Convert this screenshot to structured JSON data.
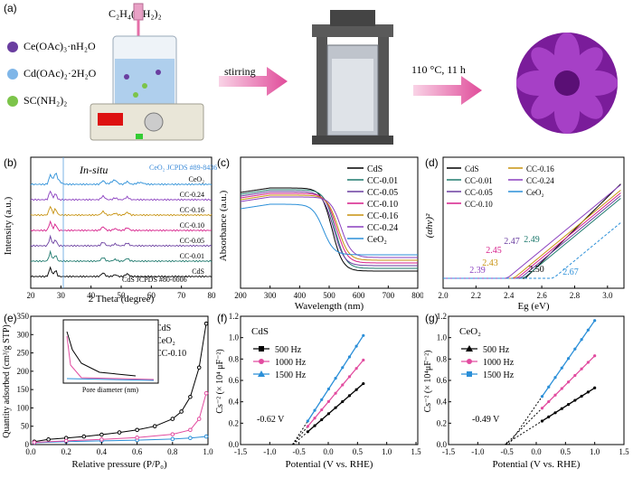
{
  "panel_a": {
    "label": "(a)",
    "reagents": [
      {
        "text": "Ce(OAc)₃·nH₂O",
        "color": "#6a3ea0"
      },
      {
        "text": "Cd(OAc)₂·2H₂O",
        "color": "#7fb6e8"
      },
      {
        "text": "SC(NH₂)₂",
        "color": "#7cc44a"
      }
    ],
    "syringe_reagent": "C₂H₄(NH₂)₂",
    "step1": "stirring",
    "step2": "110 °C,  11 h"
  },
  "chart_data": [
    {
      "panel": "(b)",
      "type": "line",
      "title": "In-situ",
      "xlabel": "2 Theta (degree)",
      "ylabel": "Intensity (a.u.)",
      "xlim": [
        20,
        80
      ],
      "xticks": [
        "20",
        "30",
        "40",
        "50",
        "60",
        "70",
        "80"
      ],
      "series": [
        {
          "name": "CdS"
        },
        {
          "name": "CC-0.01"
        },
        {
          "name": "CC-0.05"
        },
        {
          "name": "CC-0.10"
        },
        {
          "name": "CC-0.16"
        },
        {
          "name": "CC-0.24"
        },
        {
          "name": "CeO₂"
        }
      ],
      "annotations": [
        "CeO₂ JCPDS #89-8436",
        "CdS JCPDS #80-0006"
      ]
    },
    {
      "panel": "(c)",
      "type": "line",
      "xlabel": "Wavelength (nm)",
      "ylabel": "Absorbance (a.u.)",
      "xlim": [
        200,
        800
      ],
      "xticks": [
        "200",
        "300",
        "400",
        "500",
        "600",
        "700",
        "800"
      ],
      "series": [
        {
          "name": "CdS"
        },
        {
          "name": "CC-0.01"
        },
        {
          "name": "CC-0.05"
        },
        {
          "name": "CC-0.10"
        },
        {
          "name": "CC-0.16"
        },
        {
          "name": "CC-0.24"
        },
        {
          "name": "CeO₂"
        }
      ]
    },
    {
      "panel": "(d)",
      "type": "line",
      "xlabel": "Eg (eV)",
      "ylabel": "(αhν)²",
      "xlim": [
        2.0,
        3.1
      ],
      "xticks": [
        "2.0",
        "2.2",
        "2.4",
        "2.6",
        "2.8",
        "3.0"
      ],
      "series": [
        {
          "name": "CdS"
        },
        {
          "name": "CC-0.01"
        },
        {
          "name": "CC-0.05"
        },
        {
          "name": "CC-0.10"
        },
        {
          "name": "CC-0.16"
        },
        {
          "name": "CC-0.24"
        },
        {
          "name": "CeO₂"
        }
      ],
      "annotations": [
        "2.45",
        "2.47",
        "2.49",
        "2.43",
        "2.39",
        "2.50",
        "2.67"
      ]
    },
    {
      "panel": "(e)",
      "type": "line",
      "xlabel": "Relative pressure (P/P₀)",
      "ylabel": "Quantity adsorbed (cm³/g STP)",
      "xlim": [
        0.0,
        1.0
      ],
      "ylim": [
        0,
        350
      ],
      "xticks": [
        "0.0",
        "0.2",
        "0.4",
        "0.6",
        "0.8",
        "1.0"
      ],
      "yticks": [
        "0",
        "50",
        "100",
        "150",
        "200",
        "250",
        "300",
        "350"
      ],
      "series": [
        {
          "name": "CdS",
          "x": [
            0.02,
            0.1,
            0.2,
            0.3,
            0.4,
            0.5,
            0.6,
            0.7,
            0.8,
            0.85,
            0.9,
            0.95,
            0.99
          ],
          "y": [
            8,
            14,
            18,
            22,
            27,
            33,
            40,
            50,
            70,
            90,
            130,
            210,
            330
          ]
        },
        {
          "name": "CeO₂",
          "x": [
            0.02,
            0.2,
            0.4,
            0.6,
            0.8,
            0.9,
            0.99
          ],
          "y": [
            5,
            8,
            10,
            12,
            15,
            18,
            22
          ]
        },
        {
          "name": "CC-0.10",
          "x": [
            0.02,
            0.2,
            0.4,
            0.6,
            0.8,
            0.9,
            0.95,
            0.99
          ],
          "y": [
            6,
            10,
            14,
            19,
            28,
            40,
            70,
            140
          ]
        }
      ],
      "inset": {
        "xlabel": "Pore diameter (nm)",
        "ylabel": "dV/dD pore volume (cm³ g⁻¹ nm⁻¹)",
        "xticks": [
          "0",
          "40",
          "80",
          "120",
          "160",
          "200",
          "240"
        ],
        "yticks": [
          "0.000",
          "0.005",
          "0.010",
          "0.015",
          "0.020"
        ]
      }
    },
    {
      "panel": "(f)",
      "type": "line",
      "title": "CdS",
      "xlabel": "Potential (V vs. RHE)",
      "ylabel": "Cs⁻² (× 10⁴ μF⁻²)",
      "xlim": [
        -1.5,
        1.5
      ],
      "ylim": [
        0,
        1.2
      ],
      "xticks": [
        "-1.5",
        "-1.0",
        "-0.5",
        "0.0",
        "0.5",
        "1.0",
        "1.5"
      ],
      "yticks": [
        "0.0",
        "0.2",
        "0.4",
        "0.6",
        "0.8",
        "1.0",
        "1.2"
      ],
      "series": [
        {
          "name": "500 Hz",
          "x": [
            -0.35,
            0.6
          ],
          "y": [
            0.12,
            0.57
          ]
        },
        {
          "name": "1000 Hz",
          "x": [
            -0.35,
            0.6
          ],
          "y": [
            0.17,
            0.79
          ]
        },
        {
          "name": "1500 Hz",
          "x": [
            -0.35,
            0.6
          ],
          "y": [
            0.22,
            1.02
          ]
        }
      ],
      "annotation": "-0.62 V"
    },
    {
      "panel": "(g)",
      "type": "line",
      "title": "CeO₂",
      "xlabel": "Potential (V vs. RHE)",
      "ylabel": "Cs⁻² (× 10⁴μF⁻²)",
      "xlim": [
        -1.5,
        1.5
      ],
      "ylim": [
        0,
        1.2
      ],
      "xticks": [
        "-1.5",
        "-1.0",
        "-0.5",
        "0.0",
        "0.5",
        "1.0",
        "1.5"
      ],
      "yticks": [
        "0.0",
        "0.2",
        "0.4",
        "0.6",
        "0.8",
        "1.0",
        "1.2"
      ],
      "series": [
        {
          "name": "500 Hz",
          "x": [
            0.1,
            1.0
          ],
          "y": [
            0.22,
            0.53
          ]
        },
        {
          "name": "1000 Hz",
          "x": [
            0.1,
            1.0
          ],
          "y": [
            0.34,
            0.83
          ]
        },
        {
          "name": "1500 Hz",
          "x": [
            0.1,
            1.0
          ],
          "y": [
            0.45,
            1.16
          ]
        }
      ],
      "annotation": "-0.49 V"
    }
  ]
}
